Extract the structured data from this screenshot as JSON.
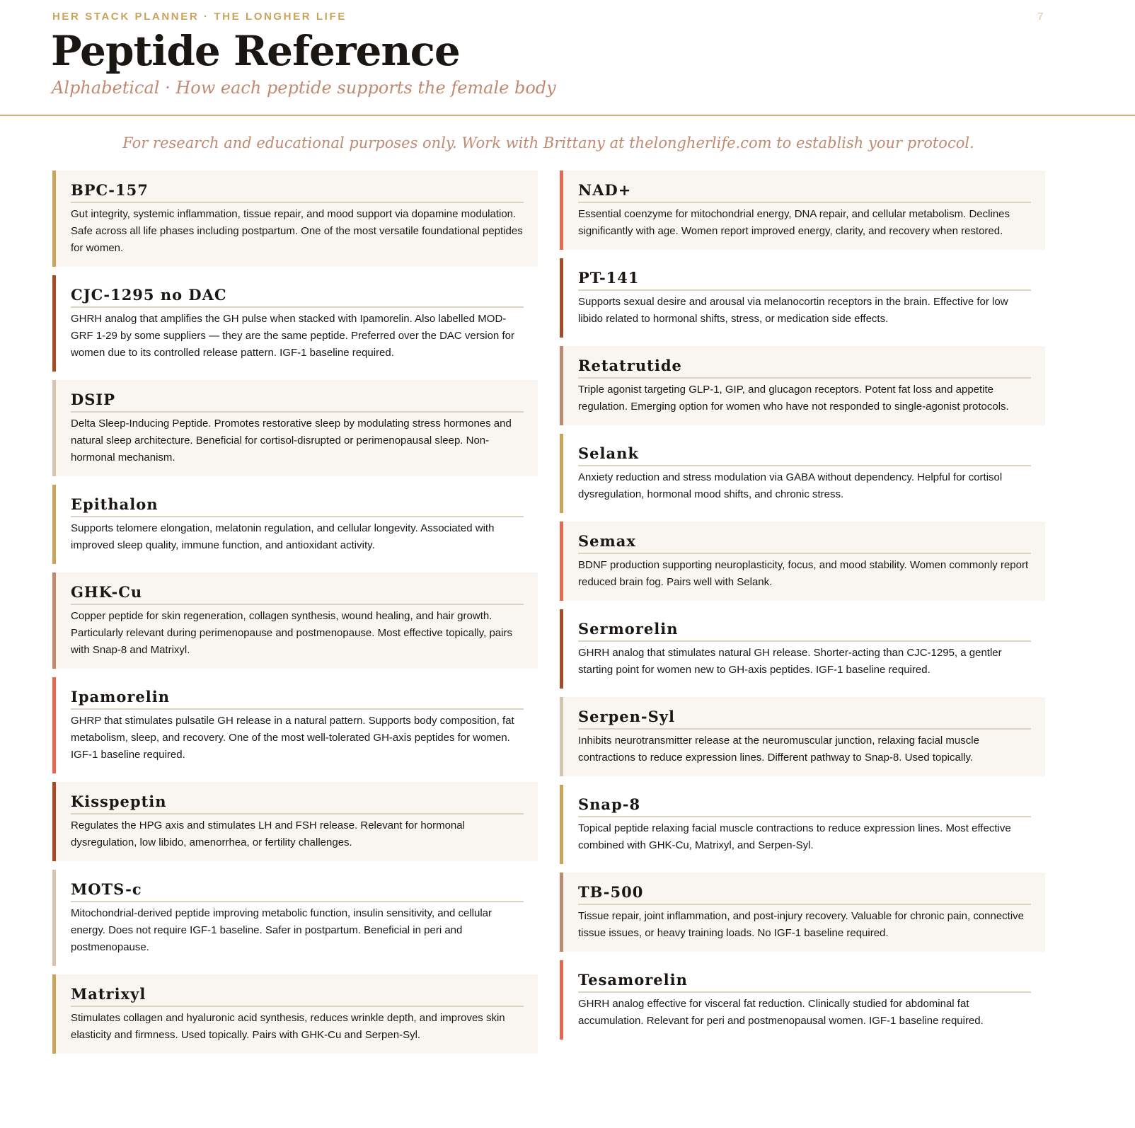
{
  "header": {
    "eyebrow": "HER STACK PLANNER · THE LONGHER LIFE",
    "page_number": "7",
    "title": "Peptide Reference",
    "subtitle": "Alphabetical · How each peptide supports the female body"
  },
  "disclaimer": "For research and educational purposes only. Work with Brittany at thelongherlife.com to establish your protocol.",
  "colors": {
    "gold": "#c9a35a",
    "rust": "#a84a25",
    "tan": "#d4c4b0",
    "rose": "#c08a70",
    "coral": "#e8684f",
    "cream": "#f9f6f1"
  },
  "left_column": [
    {
      "name": "BPC-157",
      "accent": "#c9a35a",
      "bg": "cream",
      "text": "Gut integrity, systemic inflammation, tissue repair, and mood support via dopamine modulation. Safe across all life phases including postpartum. One of the most versatile foundational peptides for women."
    },
    {
      "name": "CJC-1295 no DAC",
      "accent": "#a84a25",
      "bg": "white",
      "text": "GHRH analog that amplifies the GH pulse when stacked with Ipamorelin. Also labelled MOD-GRF 1-29 by some suppliers — they are the same peptide. Preferred over the DAC version for women due to its controlled release pattern. IGF-1 baseline required."
    },
    {
      "name": "DSIP",
      "accent": "#d4c4b0",
      "bg": "cream",
      "text": "Delta Sleep-Inducing Peptide. Promotes restorative sleep by modulating stress hormones and natural sleep architecture. Beneficial for cortisol-disrupted or perimenopausal sleep. Non-hormonal mechanism."
    },
    {
      "name": "Epithalon",
      "accent": "#c9a35a",
      "bg": "white",
      "text": "Supports telomere elongation, melatonin regulation, and cellular longevity. Associated with improved sleep quality, immune function, and antioxidant activity."
    },
    {
      "name": "GHK-Cu",
      "accent": "#c08a70",
      "bg": "cream",
      "text": "Copper peptide for skin regeneration, collagen synthesis, wound healing, and hair growth. Particularly relevant during perimenopause and postmenopause. Most effective topically, pairs with Snap-8 and Matrixyl."
    },
    {
      "name": "Ipamorelin",
      "accent": "#e8684f",
      "bg": "white",
      "text": "GHRP that stimulates pulsatile GH release in a natural pattern. Supports body composition, fat metabolism, sleep, and recovery. One of the most well-tolerated GH-axis peptides for women. IGF-1 baseline required."
    },
    {
      "name": "Kisspeptin",
      "accent": "#a84a25",
      "bg": "cream",
      "text": "Regulates the HPG axis and stimulates LH and FSH release. Relevant for hormonal dysregulation, low libido, amenorrhea, or fertility challenges."
    },
    {
      "name": "MOTS-c",
      "accent": "#d4c4b0",
      "bg": "white",
      "text": "Mitochondrial-derived peptide improving metabolic function, insulin sensitivity, and cellular energy. Does not require IGF-1 baseline. Safer in postpartum. Beneficial in peri and postmenopause."
    },
    {
      "name": "Matrixyl",
      "accent": "#c9a35a",
      "bg": "cream",
      "text": "Stimulates collagen and hyaluronic acid synthesis, reduces wrinkle depth, and improves skin elasticity and firmness. Used topically. Pairs with GHK-Cu and Serpen-Syl."
    }
  ],
  "right_column": [
    {
      "name": "NAD+",
      "accent": "#e8684f",
      "bg": "cream",
      "text": "Essential coenzyme for mitochondrial energy, DNA repair, and cellular metabolism. Declines significantly with age. Women report improved energy, clarity, and recovery when restored."
    },
    {
      "name": "PT-141",
      "accent": "#a84a25",
      "bg": "white",
      "text": "Supports sexual desire and arousal via melanocortin receptors in the brain. Effective for low libido related to hormonal shifts, stress, or medication side effects."
    },
    {
      "name": "Retatrutide",
      "accent": "#c08a70",
      "bg": "cream",
      "text": "Triple agonist targeting GLP-1, GIP, and glucagon receptors. Potent fat loss and appetite regulation. Emerging option for women who have not responded to single-agonist protocols."
    },
    {
      "name": "Selank",
      "accent": "#c9a35a",
      "bg": "white",
      "text": "Anxiety reduction and stress modulation via GABA without dependency. Helpful for cortisol dysregulation, hormonal mood shifts, and chronic stress."
    },
    {
      "name": "Semax",
      "accent": "#e8684f",
      "bg": "cream",
      "text": "BDNF production supporting neuroplasticity, focus, and mood stability. Women commonly report reduced brain fog. Pairs well with Selank."
    },
    {
      "name": "Sermorelin",
      "accent": "#a84a25",
      "bg": "white",
      "text": "GHRH analog that stimulates natural GH release. Shorter-acting than CJC-1295, a gentler starting point for women new to GH-axis peptides. IGF-1 baseline required."
    },
    {
      "name": "Serpen-Syl",
      "accent": "#d4c4b0",
      "bg": "cream",
      "text": "Inhibits neurotransmitter release at the neuromuscular junction, relaxing facial muscle contractions to reduce expression lines. Different pathway to Snap-8. Used topically."
    },
    {
      "name": "Snap-8",
      "accent": "#c9a35a",
      "bg": "white",
      "text": "Topical peptide relaxing facial muscle contractions to reduce expression lines. Most effective combined with GHK-Cu, Matrixyl, and Serpen-Syl."
    },
    {
      "name": "TB-500",
      "accent": "#c08a70",
      "bg": "cream",
      "text": "Tissue repair, joint inflammation, and post-injury recovery. Valuable for chronic pain, connective tissue issues, or heavy training loads. No IGF-1 baseline required."
    },
    {
      "name": "Tesamorelin",
      "accent": "#e8684f",
      "bg": "white",
      "text": "GHRH analog effective for visceral fat reduction. Clinically studied for abdominal fat accumulation. Relevant for peri and postmenopausal women. IGF-1 baseline required."
    }
  ]
}
